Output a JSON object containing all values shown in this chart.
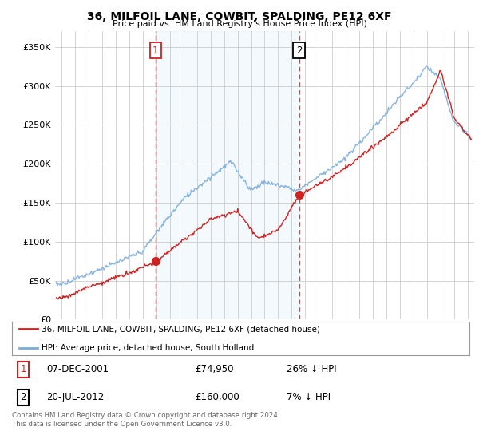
{
  "title": "36, MILFOIL LANE, COWBIT, SPALDING, PE12 6XF",
  "subtitle": "Price paid vs. HM Land Registry's House Price Index (HPI)",
  "ylabel_ticks": [
    "£0",
    "£50K",
    "£100K",
    "£150K",
    "£200K",
    "£250K",
    "£300K",
    "£350K"
  ],
  "ytick_values": [
    0,
    50000,
    100000,
    150000,
    200000,
    250000,
    300000,
    350000
  ],
  "ylim": [
    0,
    370000
  ],
  "xlim_start": 1994.5,
  "xlim_end": 2025.5,
  "hpi_color": "#7aaddc",
  "price_color": "#cc2222",
  "vline1_x": 2001.92,
  "vline2_x": 2012.54,
  "point1_x": 2001.92,
  "point1_y": 74950,
  "point2_x": 2012.54,
  "point2_y": 160000,
  "shade_color": "#d0e8f8",
  "legend_line1": "36, MILFOIL LANE, COWBIT, SPALDING, PE12 6XF (detached house)",
  "legend_line2": "HPI: Average price, detached house, South Holland",
  "table_row1": [
    "1",
    "07-DEC-2001",
    "£74,950",
    "26% ↓ HPI"
  ],
  "table_row2": [
    "2",
    "20-JUL-2012",
    "£160,000",
    "7% ↓ HPI"
  ],
  "footnote": "Contains HM Land Registry data © Crown copyright and database right 2024.\nThis data is licensed under the Open Government Licence v3.0.",
  "background_color": "#ffffff",
  "grid_color": "#cccccc"
}
